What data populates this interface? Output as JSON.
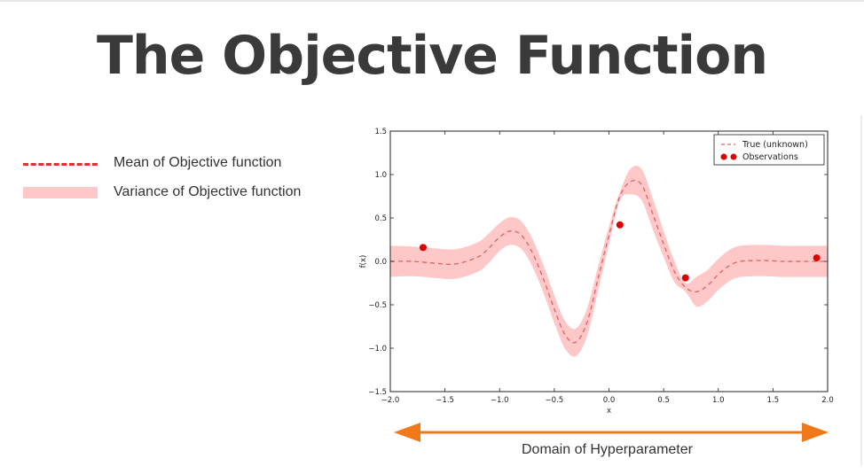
{
  "slide": {
    "title": "The Objective Function",
    "legend_items": [
      {
        "label": "Mean of Objective function",
        "style": "dashed-line",
        "color": "#e03030"
      },
      {
        "label": "Variance of Objective function",
        "style": "band",
        "color": "#ffc8c8"
      }
    ],
    "domain_label": "Domain of Hyperparameter",
    "arrow_color": "#f07a1a"
  },
  "chart_data": {
    "type": "line",
    "xlabel": "x",
    "ylabel": "f(x)",
    "xlim": [
      -2.0,
      2.0
    ],
    "ylim": [
      -1.5,
      1.5
    ],
    "xticks": [
      "−2.0",
      "−1.5",
      "−1.0",
      "−0.5",
      "0.0",
      "0.5",
      "1.0",
      "1.5",
      "2.0"
    ],
    "yticks": [
      "1.5",
      "1.0",
      "0.5",
      "0.0",
      "−0.5",
      "−1.0",
      "−1.5"
    ],
    "legend_position": "top-right",
    "series": [
      {
        "name": "True (unknown)",
        "style": "dashed",
        "color": "#e06060",
        "band_color": "#ffc8c8",
        "x": [
          -2.0,
          -1.8,
          -1.6,
          -1.4,
          -1.2,
          -1.1,
          -1.0,
          -0.9,
          -0.8,
          -0.7,
          -0.6,
          -0.5,
          -0.4,
          -0.3,
          -0.2,
          -0.1,
          0.0,
          0.1,
          0.2,
          0.3,
          0.4,
          0.5,
          0.6,
          0.7,
          0.8,
          0.9,
          1.0,
          1.1,
          1.2,
          1.4,
          1.6,
          1.8,
          2.0
        ],
        "y": [
          0.0,
          0.0,
          -0.02,
          -0.03,
          0.05,
          0.15,
          0.28,
          0.35,
          0.3,
          0.1,
          -0.2,
          -0.55,
          -0.85,
          -0.93,
          -0.7,
          -0.2,
          0.3,
          0.75,
          0.92,
          0.88,
          0.55,
          0.2,
          -0.12,
          -0.3,
          -0.35,
          -0.28,
          -0.15,
          -0.05,
          0.0,
          0.01,
          0.0,
          0.0,
          0.0
        ],
        "band_halfwidth": [
          0.18,
          0.17,
          0.17,
          0.17,
          0.17,
          0.17,
          0.16,
          0.16,
          0.16,
          0.16,
          0.16,
          0.16,
          0.16,
          0.16,
          0.16,
          0.14,
          0.1,
          0.05,
          0.15,
          0.18,
          0.18,
          0.15,
          0.12,
          0.05,
          0.17,
          0.18,
          0.18,
          0.18,
          0.18,
          0.18,
          0.18,
          0.18,
          0.18
        ]
      },
      {
        "name": "Observations",
        "style": "points",
        "color": "#dd0000",
        "x": [
          -1.7,
          0.1,
          0.7,
          1.9
        ],
        "y": [
          0.16,
          0.42,
          -0.19,
          0.04
        ]
      }
    ]
  }
}
